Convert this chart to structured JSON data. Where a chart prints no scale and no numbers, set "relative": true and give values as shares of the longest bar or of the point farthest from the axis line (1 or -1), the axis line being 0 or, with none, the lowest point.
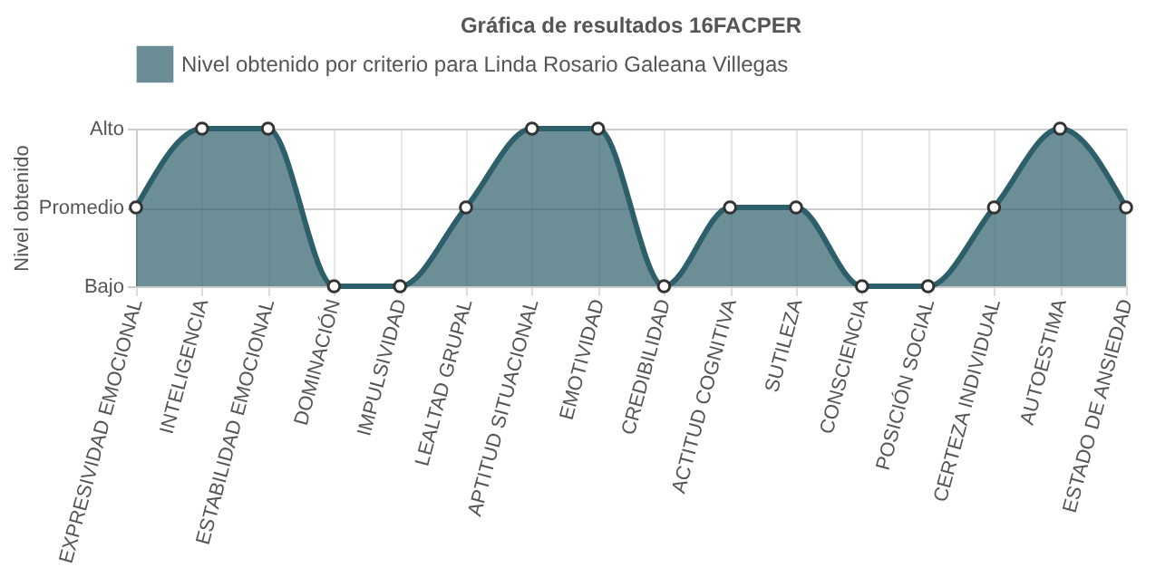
{
  "chart_data": {
    "type": "area",
    "title": "Gráfica de resultados 16FACPER",
    "ylabel": "Nivel obtenido",
    "categories": [
      "EXPRESIVIDAD EMOCIONAL",
      "INTELIGENCIA",
      "ESTABILIDAD EMOCIONAL",
      "DOMINACIÓN",
      "IMPULSIVIDAD",
      "LEALTAD GRUPAL",
      "APTITUD SITUACIONAL",
      "EMOTIVIDAD",
      "CREDIBILIDAD",
      "ACTITUD COGNITIVA",
      "SUTILEZA",
      "CONSCIENCIA",
      "POSICIÓN SOCIAL",
      "CERTEZA INDIVIDUAL",
      "AUTOESTIMA",
      "ESTADO DE ANSIEDAD"
    ],
    "y_categories": [
      "Alto",
      "Promedio",
      "Bajo"
    ],
    "relative": true,
    "series": [
      {
        "name": "Nivel obtenido por criterio para Linda Rosario Galeana Villegas",
        "color": "#2d5f6b",
        "values": [
          0.5,
          1,
          1,
          0,
          0,
          0.5,
          1,
          1,
          0,
          0.5,
          0.5,
          0,
          0,
          0.5,
          1,
          0.5
        ]
      }
    ],
    "grid": true,
    "legend": "top",
    "marker": "circle"
  }
}
